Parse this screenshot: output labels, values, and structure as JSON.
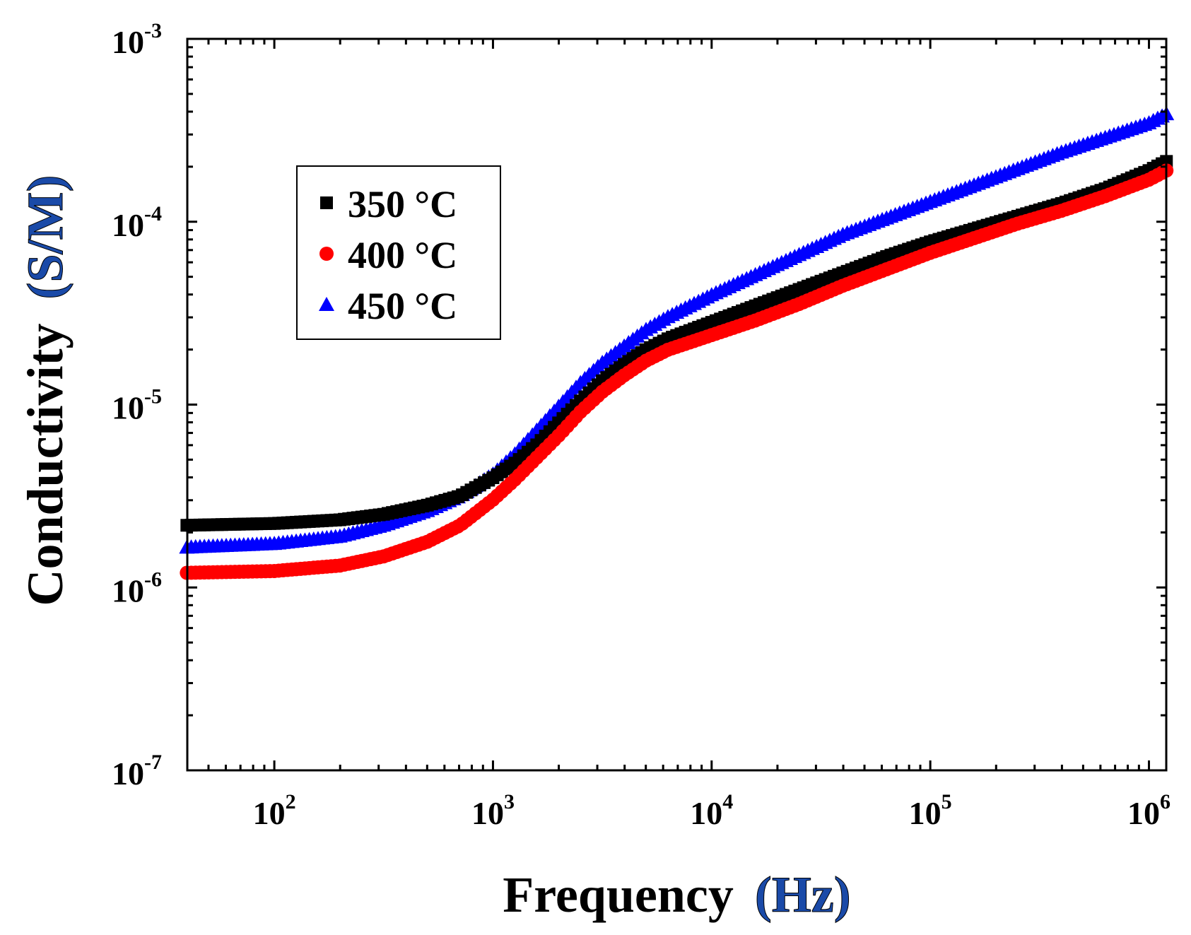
{
  "chart_data": {
    "type": "scatter",
    "title": "",
    "xlabel": {
      "main": "Frequency",
      "unit": "(Hz)",
      "unit_color": "#1a4aa8"
    },
    "ylabel": {
      "main": "Conductivity",
      "unit": "(S/M)",
      "unit_color": "#1a4aa8"
    },
    "x_scale": "log",
    "y_scale": "log",
    "xlim": [
      40,
      1200000
    ],
    "ylim": [
      1e-07,
      0.001
    ],
    "x_ticks": [
      {
        "value": 100,
        "base": "10",
        "exp": "2"
      },
      {
        "value": 1000,
        "base": "10",
        "exp": "3"
      },
      {
        "value": 10000,
        "base": "10",
        "exp": "4"
      },
      {
        "value": 100000,
        "base": "10",
        "exp": "5"
      },
      {
        "value": 1000000,
        "base": "10",
        "exp": "6"
      }
    ],
    "y_ticks": [
      {
        "value": 1e-07,
        "base": "10",
        "exp": "-7"
      },
      {
        "value": 1e-06,
        "base": "10",
        "exp": "-6"
      },
      {
        "value": 1e-05,
        "base": "10",
        "exp": "-5"
      },
      {
        "value": 0.0001,
        "base": "10",
        "exp": "-4"
      },
      {
        "value": 0.001,
        "base": "10",
        "exp": "-3"
      }
    ],
    "legend_position": "upper-left",
    "series": [
      {
        "name": "350 °C",
        "marker": "square",
        "color": "#000000",
        "log10_x": [
          1.6,
          2.0,
          2.3,
          2.5,
          2.7,
          2.85,
          3.0,
          3.1,
          3.2,
          3.3,
          3.4,
          3.5,
          3.6,
          3.7,
          3.8,
          4.0,
          4.2,
          4.4,
          4.6,
          4.8,
          5.0,
          5.2,
          5.4,
          5.6,
          5.8,
          6.0,
          6.08
        ],
        "log10_y": [
          -5.66,
          -5.65,
          -5.63,
          -5.6,
          -5.55,
          -5.5,
          -5.4,
          -5.32,
          -5.22,
          -5.1,
          -4.98,
          -4.87,
          -4.78,
          -4.7,
          -4.64,
          -4.55,
          -4.46,
          -4.37,
          -4.28,
          -4.19,
          -4.11,
          -4.04,
          -3.97,
          -3.9,
          -3.82,
          -3.72,
          -3.67
        ]
      },
      {
        "name": "400 °C",
        "marker": "circle",
        "color": "#ff0000",
        "log10_x": [
          1.6,
          2.0,
          2.3,
          2.5,
          2.7,
          2.85,
          3.0,
          3.1,
          3.2,
          3.3,
          3.4,
          3.5,
          3.6,
          3.7,
          3.8,
          4.0,
          4.2,
          4.4,
          4.6,
          4.8,
          5.0,
          5.2,
          5.4,
          5.6,
          5.8,
          6.0,
          6.08
        ],
        "log10_y": [
          -5.92,
          -5.91,
          -5.88,
          -5.83,
          -5.75,
          -5.66,
          -5.52,
          -5.41,
          -5.29,
          -5.17,
          -5.04,
          -4.93,
          -4.84,
          -4.76,
          -4.7,
          -4.62,
          -4.54,
          -4.45,
          -4.35,
          -4.26,
          -4.17,
          -4.09,
          -4.01,
          -3.94,
          -3.86,
          -3.77,
          -3.72
        ]
      },
      {
        "name": "450 °C",
        "marker": "triangle",
        "color": "#0000ff",
        "log10_x": [
          1.6,
          2.0,
          2.3,
          2.5,
          2.7,
          2.85,
          3.0,
          3.1,
          3.2,
          3.3,
          3.4,
          3.5,
          3.6,
          3.7,
          3.8,
          4.0,
          4.2,
          4.4,
          4.6,
          4.8,
          5.0,
          5.2,
          5.4,
          5.6,
          5.8,
          6.0,
          6.08
        ],
        "log10_y": [
          -5.78,
          -5.76,
          -5.72,
          -5.66,
          -5.58,
          -5.5,
          -5.38,
          -5.27,
          -5.14,
          -5.01,
          -4.88,
          -4.77,
          -4.68,
          -4.59,
          -4.52,
          -4.4,
          -4.29,
          -4.18,
          -4.07,
          -3.98,
          -3.89,
          -3.8,
          -3.71,
          -3.62,
          -3.54,
          -3.46,
          -3.41
        ]
      }
    ]
  }
}
